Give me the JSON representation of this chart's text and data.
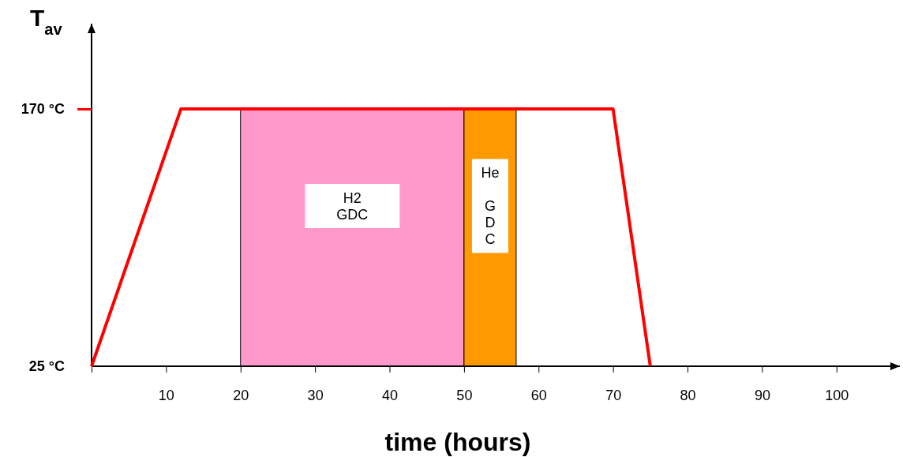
{
  "chart_data": {
    "type": "line",
    "xlabel": "time (hours)",
    "ylabel": "T$_{av}$",
    "series": [
      {
        "color": "#ff0000",
        "x": [
          0,
          12,
          70,
          75
        ],
        "values": [
          25,
          170,
          170,
          25
        ]
      }
    ],
    "xlim": [
      0,
      108.5
    ],
    "xticks": [
      {
        "value": 0,
        "label": null
      },
      10,
      20,
      30,
      40,
      50,
      60,
      70,
      80,
      90,
      100
    ],
    "ylim": [
      25,
      218
    ],
    "yticks": [
      {
        "value": 25,
        "label": "25 °C"
      },
      {
        "value": 170,
        "label": "170 °C"
      }
    ],
    "bands": [
      {
        "axis": "x",
        "from": 20,
        "to": 50,
        "label": "H2\nGDC",
        "color": "#ff99cc"
      },
      {
        "axis": "x",
        "from": 50,
        "to": 57,
        "label": "He\n\nG\nD\nC",
        "color": "#ff9900"
      }
    ],
    "grid": false,
    "marker": "none",
    "line_style": "solid"
  }
}
